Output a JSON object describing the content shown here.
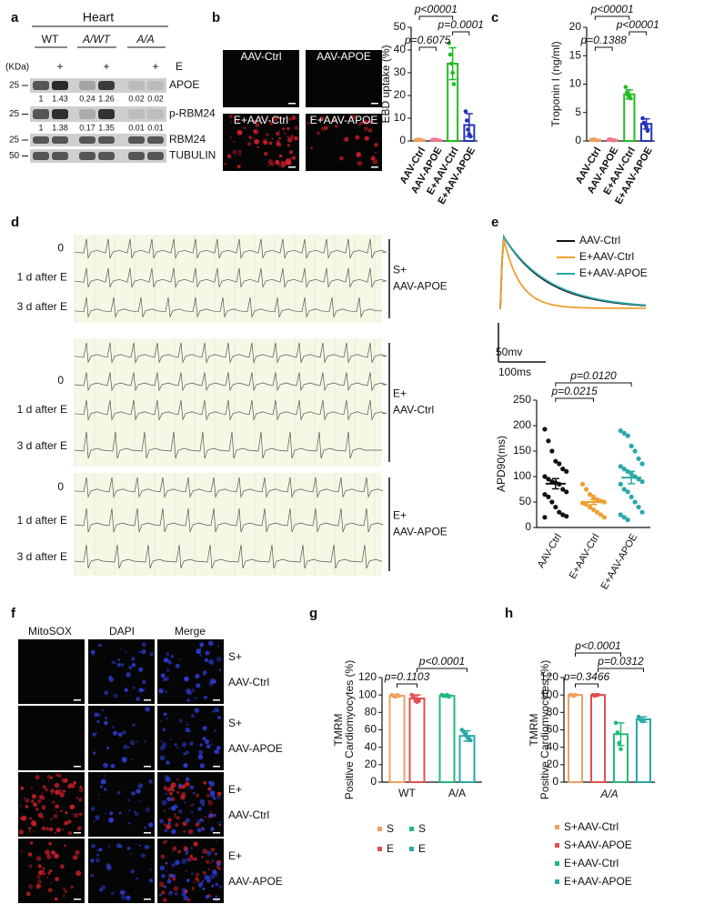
{
  "panel_letters": [
    "a",
    "b",
    "c",
    "d",
    "e",
    "f",
    "g",
    "h"
  ],
  "blot": {
    "tissue": "Heart",
    "genotypes": [
      "WT",
      "A/WT",
      "A/A"
    ],
    "unit": "(KDa)",
    "treatment": "E",
    "plus": "+",
    "rows": [
      {
        "label": "APOE",
        "kda": 25,
        "quant": [
          1,
          1.43,
          0.24,
          1.26,
          0.02,
          0.02
        ]
      },
      {
        "label": "p-RBM24",
        "kda": 25,
        "quant": [
          1,
          1.38,
          0.17,
          1.35,
          0.01,
          0.01
        ]
      },
      {
        "label": "RBM24",
        "kda": 25
      },
      {
        "label": "TUBULIN",
        "kda": 50
      }
    ]
  },
  "images_b": [
    "AAV-Ctrl",
    "AAV-APOE",
    "E+AAV-Ctrl",
    "E+AAV-APOE"
  ],
  "ecg": {
    "row_labels": [
      "0",
      "1 d after E",
      "3 d after E"
    ],
    "groups": [
      [
        "S+",
        "AAV-APOE"
      ],
      [
        "E+",
        "AAV-Ctrl"
      ],
      [
        "E+",
        "AAV-APOE"
      ]
    ]
  },
  "action_potential": {
    "legend": [
      {
        "name": "AAV-Ctrl",
        "color": "#111111"
      },
      {
        "name": "E+AAV-Ctrl",
        "color": "#f0a030"
      },
      {
        "name": "E+AAV-APOE",
        "color": "#2aa8a8"
      }
    ],
    "scale_y": "50mv",
    "scale_x": "100ms"
  },
  "microscopy": {
    "channels": [
      "MitoSOX",
      "DAPI",
      "Merge"
    ],
    "rows": [
      [
        "S+",
        "AAV-Ctrl"
      ],
      [
        "S+",
        "AAV-APOE"
      ],
      [
        "E+",
        "AAV-Ctrl"
      ],
      [
        "E+",
        "AAV-APOE"
      ]
    ]
  },
  "chart_data": [
    {
      "type": "bar",
      "ylabel": "EBD uptake (%)",
      "categories": [
        "AAV-Ctrl",
        "AAV-APOE",
        "E+AAV-Ctrl",
        "E+AAV-APOE"
      ],
      "values": [
        0.5,
        0.5,
        34,
        7
      ],
      "errors": [
        0.3,
        0.3,
        7,
        5
      ],
      "colors": [
        "#f0a060",
        "#e87a8a",
        "#22bb22",
        "#2233bb"
      ],
      "points": [
        [
          0.3,
          0.5,
          0.6,
          0.4,
          0.5
        ],
        [
          0.4,
          0.5,
          0.6,
          0.5,
          0.4
        ],
        [
          43,
          38,
          34,
          30,
          25
        ],
        [
          13,
          9,
          5,
          3,
          2
        ]
      ],
      "ylim": [
        0,
        50
      ],
      "yticks": [
        0,
        10,
        20,
        30,
        40,
        50
      ],
      "annotations": [
        "p<00001",
        "p=0.6075",
        "p=0.0001"
      ]
    },
    {
      "type": "bar",
      "ylabel": "Troponin I (ng/ml)",
      "categories": [
        "AAV-Ctrl",
        "AAV-APOE",
        "E+AAV-Ctrl",
        "E+AAV-APOE"
      ],
      "values": [
        0.2,
        0.2,
        8.2,
        3
      ],
      "errors": [
        0.1,
        0.1,
        0.8,
        0.9
      ],
      "colors": [
        "#f0a060",
        "#e87a8a",
        "#22bb22",
        "#2233bb"
      ],
      "points": [
        [
          0.2,
          0.2,
          0.3,
          0.2,
          0.1
        ],
        [
          0.2,
          0.3,
          0.2,
          0.2,
          0.1
        ],
        [
          9.5,
          8.5,
          8,
          7.8,
          7.5
        ],
        [
          4,
          3.2,
          3,
          2.5,
          1.8
        ]
      ],
      "ylim": [
        0,
        20
      ],
      "yticks": [
        0,
        5,
        10,
        15,
        20
      ],
      "annotations": [
        "p<00001",
        "p=0.1388",
        "p<00001"
      ]
    },
    {
      "type": "strip",
      "ylabel": "APD90(ms)",
      "categories": [
        "AAV-Ctrl",
        "E+AAV-Ctrl",
        "E+AAV-APOE"
      ],
      "values": [
        86,
        50,
        98
      ],
      "errors": [
        10,
        5,
        12
      ],
      "colors": [
        "#111111",
        "#f0a030",
        "#2aa8a8"
      ],
      "points": [
        [
          193,
          170,
          150,
          130,
          125,
          115,
          110,
          100,
          95,
          90,
          88,
          85,
          75,
          70,
          65,
          60,
          50,
          40,
          30,
          25,
          22,
          20
        ],
        [
          85,
          75,
          65,
          60,
          55,
          52,
          50,
          48,
          45,
          40,
          35,
          30,
          25,
          20
        ],
        [
          190,
          185,
          180,
          160,
          150,
          135,
          125,
          120,
          115,
          110,
          105,
          100,
          95,
          90,
          85,
          75,
          70,
          60,
          50,
          40,
          30,
          25,
          20,
          15
        ]
      ],
      "ylim": [
        0,
        250
      ],
      "yticks": [
        0,
        50,
        100,
        150,
        200,
        250
      ],
      "annotations": [
        "p=0.0215",
        "p=0.0120"
      ]
    },
    {
      "type": "bar",
      "ylabel": [
        "TMRM",
        "Positive Cardiomyocytes (%)"
      ],
      "categories": [
        "WT",
        "A/A"
      ],
      "series": [
        {
          "name": "S",
          "colors": [
            "#f0a060",
            "#22bb77"
          ],
          "values": [
            99,
            99
          ],
          "errors": [
            1,
            1
          ],
          "points": [
            [
              100,
              99,
              98,
              100,
              99
            ],
            [
              100,
              99,
              99,
              100,
              98
            ]
          ]
        },
        {
          "name": "E",
          "colors": [
            "#e05050",
            "#2aa8a8"
          ],
          "values": [
            96,
            53
          ],
          "errors": [
            4,
            6
          ],
          "points": [
            [
              100,
              98,
              95,
              92,
              94
            ],
            [
              60,
              58,
              55,
              52,
              50,
              48
            ]
          ]
        }
      ],
      "ylim": [
        0,
        120
      ],
      "yticks": [
        0,
        20,
        40,
        60,
        80,
        100,
        120
      ],
      "annotations": [
        "p=0.1103",
        "p<0.0001"
      ]
    },
    {
      "type": "bar",
      "ylabel": [
        "TMRM",
        "Positive Cardiomyocytes (%)"
      ],
      "xlabel": "A/A",
      "legend": true,
      "categories": [
        "S+AAV-Ctrl",
        "S+AAV-APOE",
        "E+AAV-Ctrl",
        "E+AAV-APOE"
      ],
      "values": [
        100,
        100,
        55,
        72
      ],
      "errors": [
        0.5,
        0.5,
        13,
        3
      ],
      "colors": [
        "#f0a060",
        "#e05050",
        "#22bb77",
        "#2aa8a8"
      ],
      "points": [
        [
          100,
          100,
          99,
          100
        ],
        [
          100,
          99,
          100,
          100
        ],
        [
          68,
          57,
          45,
          38
        ],
        [
          75,
          72,
          70,
          70
        ]
      ],
      "ylim": [
        0,
        120
      ],
      "yticks": [
        0,
        20,
        40,
        60,
        80,
        100,
        120
      ],
      "annotations": [
        "p<0.0001",
        "p=0.3466",
        "p=0.0312"
      ]
    }
  ]
}
